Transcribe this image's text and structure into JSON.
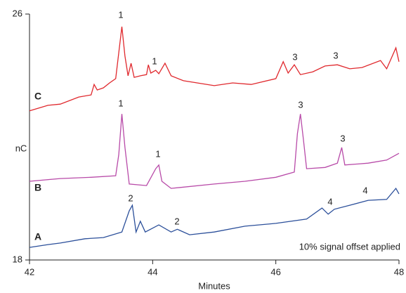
{
  "chart_data": {
    "type": "line",
    "xlabel": "Minutes",
    "ylabel": "nC",
    "xlim": [
      42,
      48
    ],
    "ylim": [
      18,
      26
    ],
    "xticks": [
      42,
      44,
      46,
      48
    ],
    "yticks": [
      18,
      26
    ],
    "note": "10% signal offset applied",
    "annotations": [
      "1",
      "1",
      "3",
      "3",
      "1",
      "1",
      "3",
      "3",
      "2",
      "2",
      "4",
      "4"
    ],
    "series": [
      {
        "name": "C",
        "color": "#e0282d",
        "x": [
          42.0,
          42.3,
          42.5,
          42.8,
          43.0,
          43.05,
          43.1,
          43.2,
          43.3,
          43.4,
          43.47,
          43.5,
          43.55,
          43.6,
          43.65,
          43.7,
          43.8,
          43.9,
          43.93,
          43.97,
          44.05,
          44.1,
          44.2,
          44.3,
          44.5,
          45.0,
          45.3,
          45.6,
          46.0,
          46.12,
          46.2,
          46.3,
          46.4,
          46.6,
          46.8,
          47.0,
          47.2,
          47.4,
          47.7,
          47.8,
          47.95,
          48.0
        ],
        "values": [
          22.85,
          23.03,
          23.07,
          23.3,
          23.37,
          23.71,
          23.53,
          23.6,
          23.76,
          23.9,
          25.09,
          25.59,
          24.63,
          23.99,
          24.4,
          23.94,
          23.99,
          24.03,
          24.35,
          24.08,
          24.17,
          24.06,
          24.4,
          23.99,
          23.83,
          23.67,
          23.76,
          23.71,
          23.9,
          24.45,
          24.08,
          24.35,
          24.03,
          24.12,
          24.31,
          24.35,
          24.22,
          24.26,
          24.49,
          24.22,
          24.9,
          24.45
        ]
      },
      {
        "name": "B",
        "color": "#b84aa8",
        "x": [
          42.0,
          42.5,
          43.0,
          43.4,
          43.45,
          43.5,
          43.55,
          43.62,
          43.9,
          44.05,
          44.1,
          44.15,
          44.3,
          45.0,
          45.5,
          46.0,
          46.3,
          46.35,
          46.4,
          46.45,
          46.5,
          46.8,
          47.0,
          47.07,
          47.12,
          47.5,
          47.8,
          48.0
        ],
        "values": [
          20.56,
          20.65,
          20.69,
          20.74,
          21.43,
          22.75,
          21.66,
          20.47,
          20.42,
          20.97,
          21.09,
          20.56,
          20.33,
          20.47,
          20.56,
          20.69,
          20.86,
          22.11,
          22.75,
          21.89,
          20.97,
          21.01,
          21.15,
          21.66,
          21.09,
          21.15,
          21.25,
          21.47
        ]
      },
      {
        "name": "A",
        "color": "#2b4f9a",
        "x": [
          42.0,
          42.3,
          42.5,
          42.9,
          43.2,
          43.5,
          43.62,
          43.67,
          43.73,
          43.8,
          43.88,
          44.1,
          44.3,
          44.4,
          44.6,
          45.0,
          45.5,
          46.0,
          46.5,
          46.75,
          46.85,
          46.95,
          47.2,
          47.5,
          47.8,
          47.95,
          48.0
        ],
        "values": [
          18.41,
          18.5,
          18.55,
          18.69,
          18.73,
          18.91,
          19.6,
          19.78,
          18.91,
          19.26,
          18.91,
          19.14,
          18.91,
          19.0,
          18.82,
          18.91,
          19.1,
          19.19,
          19.33,
          19.69,
          19.49,
          19.65,
          19.78,
          19.94,
          19.97,
          20.33,
          20.15
        ]
      }
    ]
  }
}
